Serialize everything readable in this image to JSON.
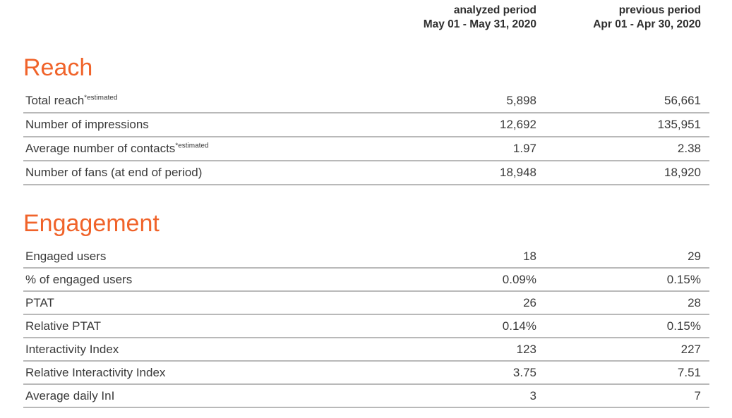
{
  "header": {
    "analyzed": {
      "title": "analyzed period",
      "range": "May 01 - May 31, 2020"
    },
    "previous": {
      "title": "previous period",
      "range": "Apr 01 - Apr 30, 2020"
    }
  },
  "sections": [
    {
      "title": "Reach",
      "rows": [
        {
          "label": "Total reach",
          "sup": "*estimated",
          "analyzed": "5,898",
          "previous": "56,661"
        },
        {
          "label": "Number of impressions",
          "sup": "",
          "analyzed": "12,692",
          "previous": "135,951"
        },
        {
          "label": "Average number of contacts",
          "sup": "*estimated",
          "analyzed": "1.97",
          "previous": "2.38"
        },
        {
          "label": "Number of fans (at end of period)",
          "sup": "",
          "analyzed": "18,948",
          "previous": "18,920"
        }
      ]
    },
    {
      "title": "Engagement",
      "rows": [
        {
          "label": "Engaged users",
          "sup": "",
          "analyzed": "18",
          "previous": "29"
        },
        {
          "label": "% of engaged users",
          "sup": "",
          "analyzed": "0.09%",
          "previous": "0.15%"
        },
        {
          "label": "PTAT",
          "sup": "",
          "analyzed": "26",
          "previous": "28"
        },
        {
          "label": "Relative PTAT",
          "sup": "",
          "analyzed": "0.14%",
          "previous": "0.15%"
        },
        {
          "label": "Interactivity Index",
          "sup": "",
          "analyzed": "123",
          "previous": "227"
        },
        {
          "label": "Relative Interactivity Index",
          "sup": "",
          "analyzed": "3.75",
          "previous": "7.51"
        },
        {
          "label": "Average daily InI",
          "sup": "",
          "analyzed": "3",
          "previous": "7"
        }
      ]
    }
  ],
  "colors": {
    "accent_orange": "#F0632A",
    "row_text": "#3A3A3A",
    "header_text": "#2E2E2E",
    "divider": "#B9B9B9"
  }
}
